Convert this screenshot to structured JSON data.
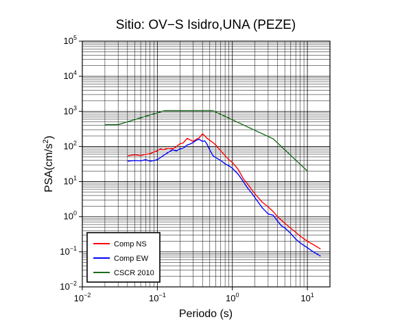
{
  "chart_data": {
    "type": "line",
    "title": "Sitio: OV−S Isidro,UNA (PEZE)",
    "xlabel": "Periodo (s)",
    "ylabel": "PSA(cm/s²)",
    "ylabel_parts": {
      "base": "PSA(cm/s",
      "sup": "2",
      "tail": ")"
    },
    "x_scale": "log",
    "y_scale": "log",
    "xlim": [
      0.01,
      20
    ],
    "ylim": [
      0.01,
      100000
    ],
    "grid": true,
    "legend_position": "bottom-left",
    "x_ticks": [
      {
        "base": "10",
        "exp": "−2"
      },
      {
        "base": "10",
        "exp": "−1"
      },
      {
        "base": "10",
        "exp": "0"
      },
      {
        "base": "10",
        "exp": "1"
      }
    ],
    "y_ticks": [
      {
        "base": "10",
        "exp": "−2"
      },
      {
        "base": "10",
        "exp": "−1"
      },
      {
        "base": "10",
        "exp": "0"
      },
      {
        "base": "10",
        "exp": "1"
      },
      {
        "base": "10",
        "exp": "2"
      },
      {
        "base": "10",
        "exp": "3"
      },
      {
        "base": "10",
        "exp": "4"
      },
      {
        "base": "10",
        "exp": "5"
      }
    ],
    "series": [
      {
        "name": "Comp NS",
        "color": "#ff0000",
        "x": [
          0.04,
          0.05,
          0.06,
          0.07,
          0.08,
          0.09,
          0.1,
          0.11,
          0.12,
          0.14,
          0.16,
          0.18,
          0.2,
          0.22,
          0.25,
          0.28,
          0.3,
          0.33,
          0.36,
          0.4,
          0.43,
          0.46,
          0.5,
          0.55,
          0.6,
          0.7,
          0.8,
          0.9,
          1.0,
          1.2,
          1.4,
          1.6,
          1.8,
          2.0,
          2.5,
          3.0,
          3.5,
          4.0,
          5.0,
          6.0,
          7.0,
          8.0,
          10.0,
          12.0,
          15.0
        ],
        "y": [
          54,
          58,
          55,
          60,
          62,
          70,
          75,
          85,
          80,
          90,
          85,
          100,
          120,
          125,
          170,
          150,
          140,
          160,
          175,
          230,
          200,
          170,
          150,
          130,
          110,
          75,
          55,
          42,
          35,
          22,
          12,
          8.5,
          6.0,
          4.5,
          2.6,
          1.9,
          1.4,
          1.0,
          0.65,
          0.47,
          0.36,
          0.28,
          0.2,
          0.16,
          0.12
        ]
      },
      {
        "name": "Comp EW",
        "color": "#0000ff",
        "x": [
          0.04,
          0.05,
          0.06,
          0.07,
          0.08,
          0.09,
          0.1,
          0.12,
          0.14,
          0.16,
          0.18,
          0.2,
          0.22,
          0.25,
          0.28,
          0.3,
          0.33,
          0.36,
          0.4,
          0.43,
          0.46,
          0.5,
          0.55,
          0.6,
          0.7,
          0.8,
          0.9,
          1.0,
          1.2,
          1.4,
          1.6,
          1.8,
          2.0,
          2.5,
          3.0,
          3.5,
          4.0,
          4.5,
          5.0,
          6.0,
          7.0,
          8.0,
          10.0,
          12.0,
          15.0
        ],
        "y": [
          38,
          40,
          39,
          42,
          38,
          40,
          42,
          55,
          68,
          80,
          75,
          85,
          90,
          110,
          120,
          130,
          150,
          160,
          140,
          145,
          115,
          80,
          55,
          48,
          40,
          32,
          28,
          24,
          16,
          10,
          6.5,
          4.8,
          3.5,
          1.8,
          1.2,
          1.1,
          0.75,
          0.55,
          0.48,
          0.33,
          0.23,
          0.18,
          0.13,
          0.1,
          0.075
        ]
      },
      {
        "name": "CSCR 2010",
        "color": "#1a6b1a",
        "x": [
          0.02,
          0.03,
          0.125,
          0.55,
          3.5,
          10.0
        ],
        "y": [
          420,
          420,
          1050,
          1050,
          165,
          20
        ]
      }
    ]
  }
}
